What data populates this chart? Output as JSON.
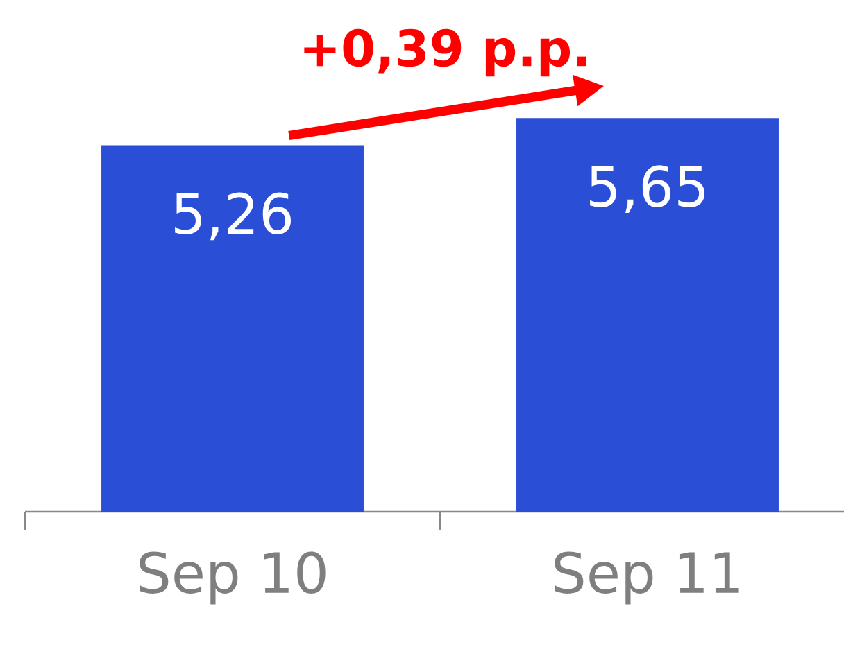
{
  "chart_data": {
    "type": "bar",
    "categories": [
      "Sep 10",
      "Sep 11"
    ],
    "values": [
      5.26,
      5.65
    ],
    "value_labels": [
      "5,26",
      "5,65"
    ],
    "color": "#2a4fd6",
    "annotations": [
      "+0,39 p.p."
    ]
  }
}
